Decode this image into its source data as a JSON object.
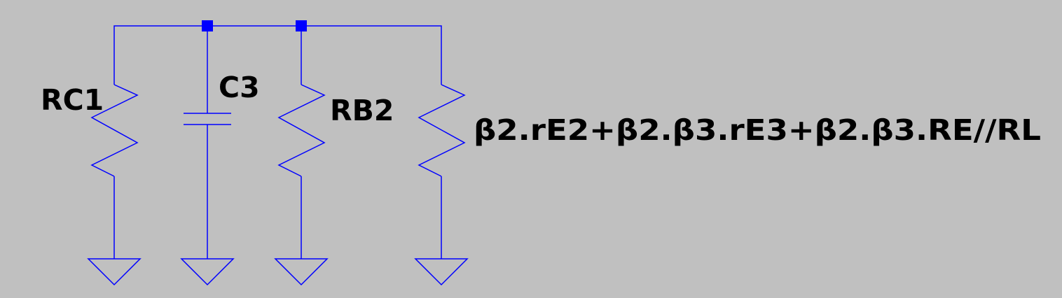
{
  "colors": {
    "background": "#c0c0c0",
    "wire": "#0000ff",
    "component": "#0000ff",
    "junction": "#0000ff",
    "label": "#000000"
  },
  "components": [
    {
      "kind": "resistor",
      "label": "RC1"
    },
    {
      "kind": "capacitor",
      "label": "C3"
    },
    {
      "kind": "resistor",
      "label": "RB2"
    },
    {
      "kind": "resistor",
      "label": "β2.rE2+β2.β3.rE3+β2.β3.RE//RL"
    }
  ],
  "grounds": 4,
  "junctions": 2
}
